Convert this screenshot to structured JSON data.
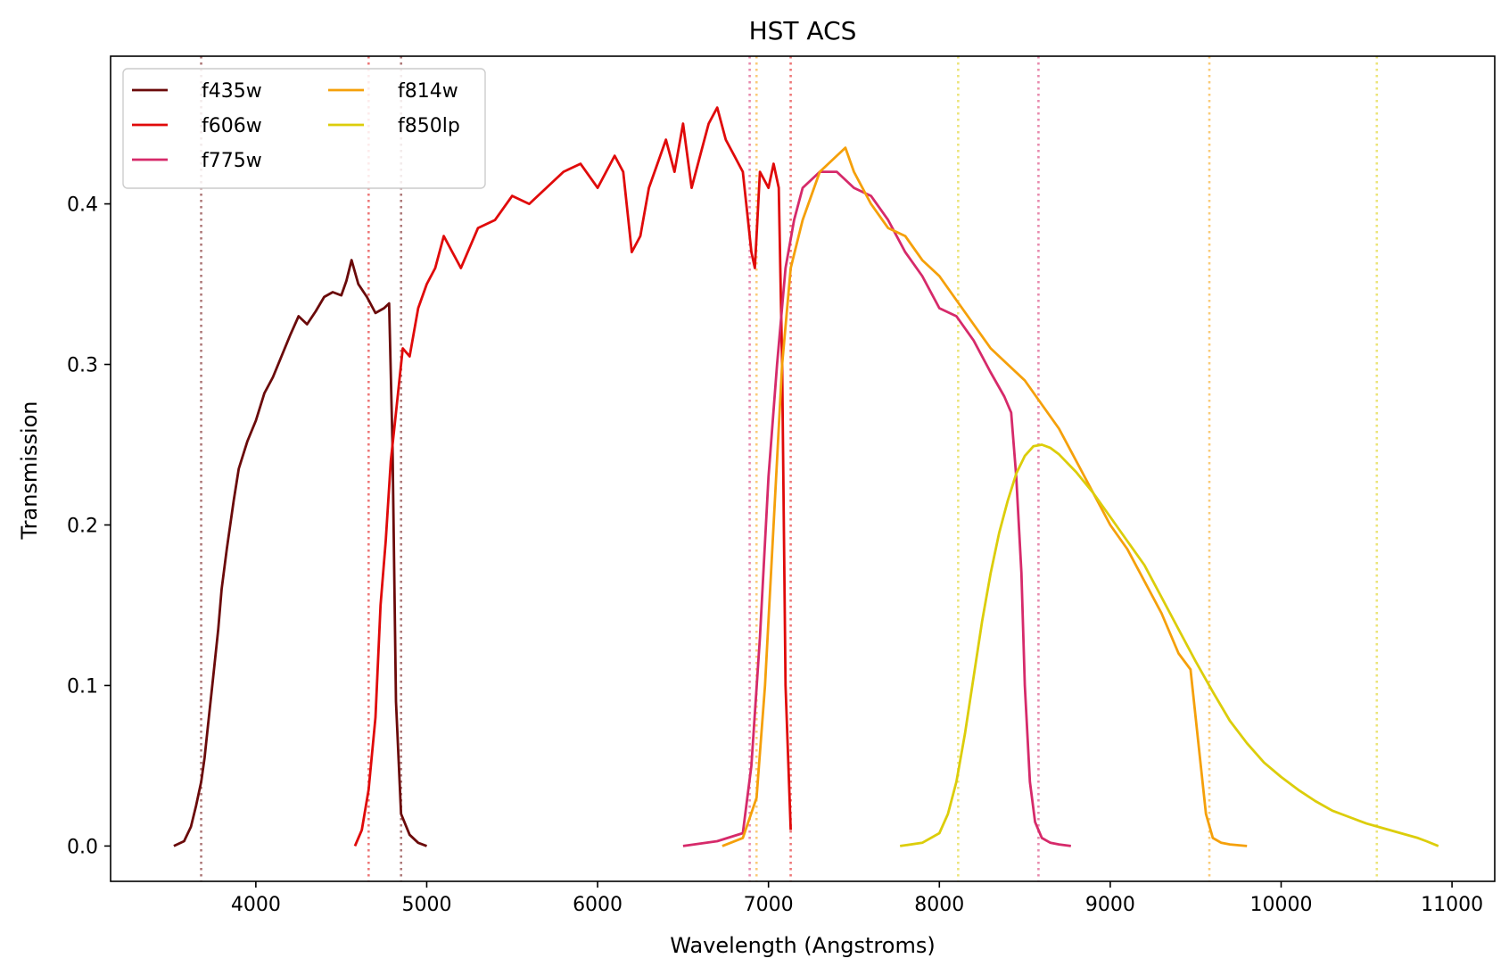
{
  "chart_data": {
    "type": "line",
    "title": "HST ACS",
    "xlabel": "Wavelength (Angstroms)",
    "ylabel": "Transmission",
    "xlim": [
      3150,
      11250
    ],
    "ylim": [
      -0.022,
      0.492
    ],
    "xticks": [
      4000,
      5000,
      6000,
      7000,
      8000,
      9000,
      10000,
      11000
    ],
    "xtick_labels": [
      "4000",
      "5000",
      "6000",
      "7000",
      "8000",
      "9000",
      "10000",
      "11000"
    ],
    "yticks": [
      0.0,
      0.1,
      0.2,
      0.3,
      0.4
    ],
    "ytick_labels": [
      "0.0",
      "0.1",
      "0.2",
      "0.3",
      "0.4"
    ],
    "grid": false,
    "legend": {
      "position": "top-left",
      "columns": 2
    },
    "series": [
      {
        "name": "f435w",
        "color": "#6b0a0a",
        "x": [
          3520,
          3580,
          3620,
          3650,
          3680,
          3700,
          3720,
          3750,
          3780,
          3800,
          3830,
          3870,
          3900,
          3950,
          4000,
          4050,
          4100,
          4150,
          4200,
          4250,
          4300,
          4350,
          4400,
          4450,
          4500,
          4530,
          4560,
          4600,
          4650,
          4700,
          4750,
          4780,
          4800,
          4820,
          4850,
          4900,
          4950,
          5000
        ],
        "y": [
          0.0,
          0.003,
          0.012,
          0.025,
          0.04,
          0.055,
          0.075,
          0.105,
          0.135,
          0.16,
          0.185,
          0.215,
          0.235,
          0.252,
          0.265,
          0.282,
          0.292,
          0.305,
          0.318,
          0.33,
          0.325,
          0.333,
          0.342,
          0.345,
          0.343,
          0.352,
          0.365,
          0.35,
          0.342,
          0.332,
          0.335,
          0.338,
          0.25,
          0.09,
          0.02,
          0.007,
          0.002,
          0.0
        ]
      },
      {
        "name": "f606w",
        "color": "#e00a0a",
        "x": [
          4580,
          4620,
          4660,
          4700,
          4730,
          4760,
          4790,
          4810,
          4830,
          4860,
          4900,
          4950,
          5000,
          5050,
          5100,
          5150,
          5200,
          5300,
          5400,
          5500,
          5600,
          5700,
          5800,
          5900,
          6000,
          6100,
          6150,
          6200,
          6250,
          6300,
          6400,
          6450,
          6500,
          6550,
          6600,
          6650,
          6700,
          6750,
          6800,
          6850,
          6880,
          6900,
          6920,
          6950,
          7000,
          7030,
          7060,
          7080,
          7100,
          7130
        ],
        "y": [
          0.0,
          0.01,
          0.035,
          0.08,
          0.15,
          0.19,
          0.24,
          0.26,
          0.28,
          0.31,
          0.305,
          0.335,
          0.35,
          0.36,
          0.38,
          0.37,
          0.36,
          0.385,
          0.39,
          0.405,
          0.4,
          0.41,
          0.42,
          0.425,
          0.41,
          0.43,
          0.42,
          0.37,
          0.38,
          0.41,
          0.44,
          0.42,
          0.45,
          0.41,
          0.43,
          0.45,
          0.46,
          0.44,
          0.43,
          0.42,
          0.39,
          0.37,
          0.36,
          0.42,
          0.41,
          0.425,
          0.41,
          0.3,
          0.1,
          0.01
        ]
      },
      {
        "name": "f775w",
        "color": "#d62a6a",
        "x": [
          6500,
          6700,
          6850,
          6900,
          6950,
          7000,
          7050,
          7100,
          7150,
          7200,
          7300,
          7400,
          7500,
          7600,
          7700,
          7800,
          7900,
          8000,
          8100,
          8200,
          8300,
          8380,
          8420,
          8450,
          8480,
          8500,
          8530,
          8560,
          8600,
          8650,
          8700,
          8770
        ],
        "y": [
          0.0,
          0.003,
          0.008,
          0.05,
          0.13,
          0.23,
          0.3,
          0.36,
          0.39,
          0.41,
          0.42,
          0.42,
          0.41,
          0.405,
          0.39,
          0.37,
          0.355,
          0.335,
          0.33,
          0.315,
          0.295,
          0.28,
          0.27,
          0.23,
          0.17,
          0.1,
          0.04,
          0.015,
          0.005,
          0.002,
          0.001,
          0.0
        ]
      },
      {
        "name": "f814w",
        "color": "#f5a00a",
        "x": [
          6730,
          6850,
          6930,
          6980,
          7030,
          7080,
          7130,
          7200,
          7300,
          7400,
          7450,
          7500,
          7600,
          7700,
          7800,
          7900,
          8000,
          8100,
          8200,
          8300,
          8400,
          8500,
          8600,
          8700,
          8800,
          8900,
          9000,
          9100,
          9200,
          9300,
          9400,
          9470,
          9520,
          9560,
          9600,
          9650,
          9700,
          9800
        ],
        "y": [
          0.0,
          0.005,
          0.03,
          0.1,
          0.2,
          0.3,
          0.36,
          0.39,
          0.42,
          0.43,
          0.435,
          0.42,
          0.4,
          0.385,
          0.38,
          0.365,
          0.355,
          0.34,
          0.325,
          0.31,
          0.3,
          0.29,
          0.275,
          0.26,
          0.24,
          0.22,
          0.2,
          0.185,
          0.165,
          0.145,
          0.12,
          0.11,
          0.06,
          0.02,
          0.005,
          0.002,
          0.001,
          0.0
        ]
      },
      {
        "name": "f850lp",
        "color": "#dccd0a",
        "x": [
          7770,
          7900,
          8000,
          8050,
          8100,
          8150,
          8200,
          8250,
          8300,
          8350,
          8400,
          8450,
          8500,
          8550,
          8600,
          8650,
          8700,
          8800,
          8900,
          9000,
          9100,
          9200,
          9300,
          9400,
          9500,
          9600,
          9700,
          9800,
          9900,
          10000,
          10100,
          10200,
          10300,
          10400,
          10500,
          10600,
          10700,
          10800,
          10850,
          10920
        ],
        "y": [
          0.0,
          0.002,
          0.008,
          0.02,
          0.04,
          0.07,
          0.105,
          0.14,
          0.17,
          0.195,
          0.215,
          0.232,
          0.243,
          0.249,
          0.25,
          0.248,
          0.244,
          0.233,
          0.22,
          0.205,
          0.19,
          0.175,
          0.155,
          0.135,
          0.115,
          0.096,
          0.078,
          0.064,
          0.052,
          0.043,
          0.035,
          0.028,
          0.022,
          0.018,
          0.014,
          0.011,
          0.008,
          0.005,
          0.003,
          0.0
        ]
      }
    ],
    "vlines": [
      {
        "x": 3680,
        "color": "#6b0a0a"
      },
      {
        "x": 4850,
        "color": "#6b0a0a"
      },
      {
        "x": 4660,
        "color": "#e00a0a"
      },
      {
        "x": 7130,
        "color": "#e00a0a"
      },
      {
        "x": 6890,
        "color": "#d62a6a"
      },
      {
        "x": 8580,
        "color": "#d62a6a"
      },
      {
        "x": 6930,
        "color": "#f5a00a"
      },
      {
        "x": 9580,
        "color": "#f5a00a"
      },
      {
        "x": 8110,
        "color": "#dccd0a"
      },
      {
        "x": 10560,
        "color": "#dccd0a"
      }
    ]
  }
}
